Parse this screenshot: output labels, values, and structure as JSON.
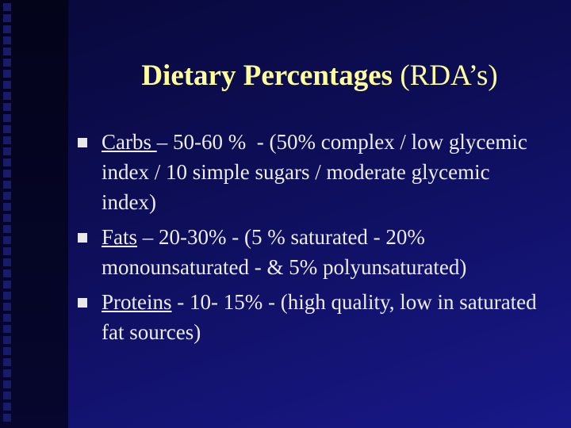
{
  "title": {
    "bold": "Dietary Percentages",
    "normal": "(RDA’s)"
  },
  "bullets": [
    {
      "term": "Carbs ",
      "text": "– 50-60 %  - (50% complex / low glycemic index / 10 simple sugars / moderate glycemic index)"
    },
    {
      "term": "Fats",
      "text": " – 20-30% - (5 % saturated - 20% monounsaturated - & 5% polyunsaturated)"
    },
    {
      "term": "Proteins",
      "text": " - 10- 15% - (high quality, low in saturated fat sources)"
    }
  ]
}
